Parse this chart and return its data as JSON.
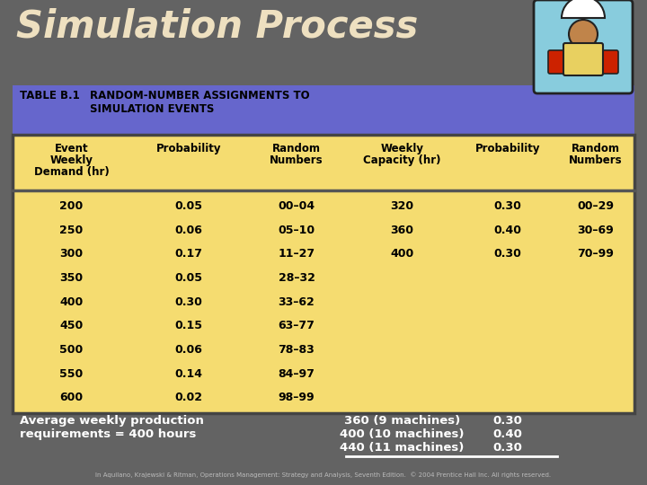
{
  "title": "Simulation Process",
  "title_color": "#EEE0C0",
  "title_fontsize": 30,
  "bg_color": "#636363",
  "table_header_bg": "#6666CC",
  "table_body_bg": "#F5DC70",
  "header_row1_label": "TABLE B.1",
  "header_row1_text": "RANDOM-NUMBER ASSIGNMENTS TO\nSIMULATION EVENTS",
  "col_headers_left": [
    "Event\nWeekly\nDemand (hr)",
    "Probability",
    "Random\nNumbers"
  ],
  "col_headers_right": [
    "Weekly\nCapacity (hr)",
    "Probability",
    "Random\nNumbers"
  ],
  "demand_data": [
    [
      "200",
      "0.05",
      "00–04"
    ],
    [
      "250",
      "0.06",
      "05–10"
    ],
    [
      "300",
      "0.17",
      "11–27"
    ],
    [
      "350",
      "0.05",
      "28–32"
    ],
    [
      "400",
      "0.30",
      "33–62"
    ],
    [
      "450",
      "0.15",
      "63–77"
    ],
    [
      "500",
      "0.06",
      "78–83"
    ],
    [
      "550",
      "0.14",
      "84–97"
    ],
    [
      "600",
      "0.02",
      "98–99"
    ]
  ],
  "capacity_data": [
    [
      "320",
      "0.30",
      "00–29"
    ],
    [
      "360",
      "0.40",
      "30–69"
    ],
    [
      "400",
      "0.30",
      "70–99"
    ]
  ],
  "footer_left": "Average weekly production\nrequirements = 400 hours",
  "footer_right_data": [
    [
      "360 (9 machines)",
      "0.30"
    ],
    [
      "400 (10 machines)",
      "0.40"
    ],
    [
      "440 (11 machines)",
      "0.30"
    ]
  ],
  "footnote": "In Aquilano, Krajewski & Ritman, Operations Management: Strategy and Analysis, Seventh Edition.  © 2004 Prentice Hall Inc. All rights reserved."
}
